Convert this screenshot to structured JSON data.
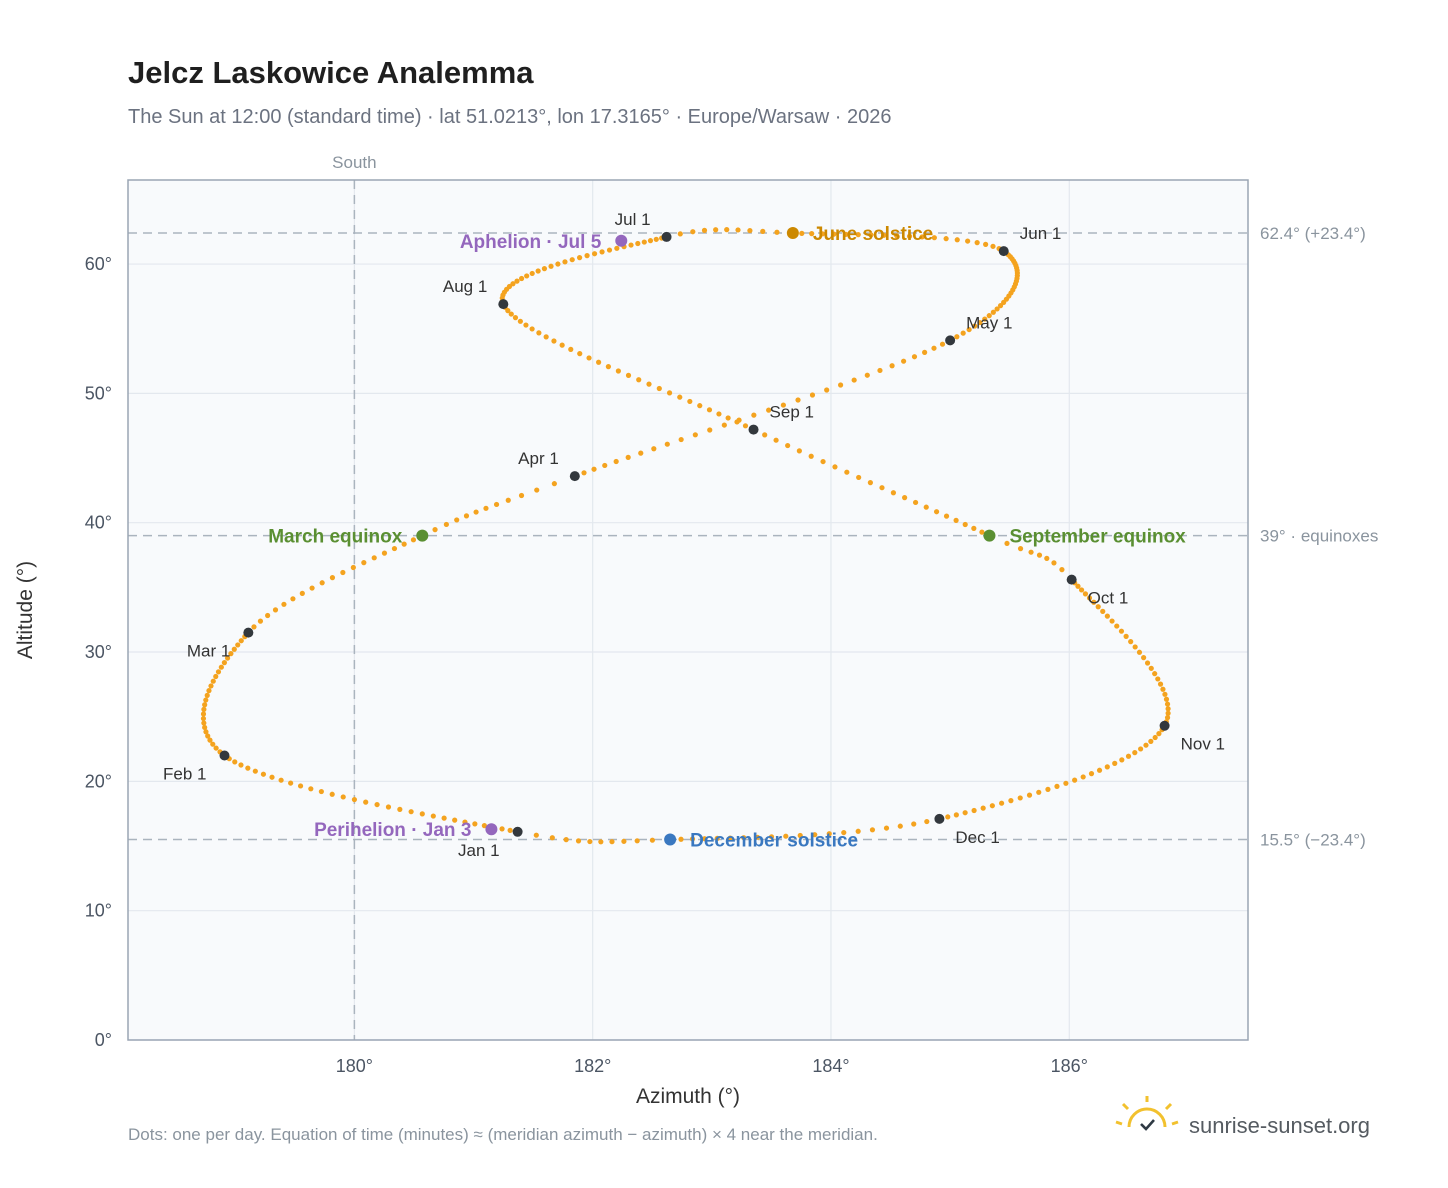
{
  "title": "Jelcz Laskowice Analemma",
  "subtitle": "The Sun at 12:00 (standard time) · lat 51.0213°, lon 17.3165° · Europe/Warsaw · 2026",
  "footnote": "Dots: one per day. Equation of time (minutes) ≈ (meridian azimuth − azimuth) × 4 near the meridian.",
  "brand": "sunrise-sunset.org",
  "colors": {
    "analemma": "#f4a31f",
    "month_marker": "#33383d",
    "equinox": "#5a8f32",
    "june_solstice": "#cc8800",
    "december_solstice": "#3a78c0",
    "apsis": "#9467bd",
    "reference_line": "#aab4be",
    "plot_background": "#f8fafc",
    "grid": "#e3e8ee",
    "frame": "#9aa5b4",
    "brand_sun": "#f2c12e"
  },
  "chart_data": {
    "type": "scatter",
    "title": "Jelcz Laskowice Analemma",
    "xlabel": "Azimuth (°)",
    "ylabel": "Altitude (°)",
    "xlim": [
      178.1,
      187.5
    ],
    "ylim": [
      0,
      66.5
    ],
    "x_ticks": [
      180,
      182,
      184,
      186
    ],
    "x_tick_labels": [
      "180°",
      "182°",
      "184°",
      "186°"
    ],
    "y_ticks": [
      0,
      10,
      20,
      30,
      40,
      50,
      60
    ],
    "y_tick_labels": [
      "0°",
      "10°",
      "20°",
      "30°",
      "40°",
      "50°",
      "60°"
    ],
    "grid": true,
    "legend": "none",
    "meridian": {
      "azimuth": 180,
      "label": "South"
    },
    "reference_lines": [
      {
        "altitude": 62.4,
        "label": "62.4° (+23.4°)"
      },
      {
        "altitude": 39.0,
        "label": "39° · equinoxes"
      },
      {
        "altitude": 15.5,
        "label": "15.5° (−23.4°)"
      }
    ],
    "series": [
      {
        "marker": "dot",
        "sampling": "one point per day",
        "anchors": [
          {
            "day": 1,
            "azimuth": 181.37,
            "altitude": 16.1
          },
          {
            "day": 32,
            "azimuth": 178.91,
            "altitude": 22.0
          },
          {
            "day": 60,
            "azimuth": 179.11,
            "altitude": 31.5
          },
          {
            "day": 79,
            "azimuth": 180.57,
            "altitude": 39.0
          },
          {
            "day": 91,
            "azimuth": 181.85,
            "altitude": 43.6
          },
          {
            "day": 121,
            "azimuth": 185.0,
            "altitude": 54.1
          },
          {
            "day": 152,
            "azimuth": 185.45,
            "altitude": 61.0
          },
          {
            "day": 172,
            "azimuth": 183.68,
            "altitude": 62.4
          },
          {
            "day": 182,
            "azimuth": 182.62,
            "altitude": 62.1
          },
          {
            "day": 213,
            "azimuth": 181.25,
            "altitude": 56.9
          },
          {
            "day": 244,
            "azimuth": 183.35,
            "altitude": 47.2
          },
          {
            "day": 266,
            "azimuth": 185.33,
            "altitude": 39.0
          },
          {
            "day": 274,
            "azimuth": 186.02,
            "altitude": 35.6
          },
          {
            "day": 305,
            "azimuth": 186.8,
            "altitude": 24.3
          },
          {
            "day": 335,
            "azimuth": 184.91,
            "altitude": 17.1
          },
          {
            "day": 355,
            "azimuth": 182.65,
            "altitude": 15.5
          },
          {
            "day": 366,
            "azimuth": 181.37,
            "altitude": 16.1
          }
        ]
      }
    ],
    "month_markers": [
      {
        "label": "Jan 1",
        "azimuth": 181.37,
        "altitude": 16.1,
        "label_pos": "below-left"
      },
      {
        "label": "Feb 1",
        "azimuth": 178.91,
        "altitude": 22.0,
        "label_pos": "below-left"
      },
      {
        "label": "Mar 1",
        "azimuth": 179.11,
        "altitude": 31.5,
        "label_pos": "below-left"
      },
      {
        "label": "Apr 1",
        "azimuth": 181.85,
        "altitude": 43.6,
        "label_pos": "above-left"
      },
      {
        "label": "May 1",
        "azimuth": 185.0,
        "altitude": 54.1,
        "label_pos": "above-right"
      },
      {
        "label": "Jun 1",
        "azimuth": 185.45,
        "altitude": 61.0,
        "label_pos": "above-right"
      },
      {
        "label": "Jul 1",
        "azimuth": 182.62,
        "altitude": 62.1,
        "label_pos": "above-left"
      },
      {
        "label": "Aug 1",
        "azimuth": 181.25,
        "altitude": 56.9,
        "label_pos": "above-left"
      },
      {
        "label": "Sep 1",
        "azimuth": 183.35,
        "altitude": 47.2,
        "label_pos": "above-right"
      },
      {
        "label": "Oct 1",
        "azimuth": 186.02,
        "altitude": 35.6,
        "label_pos": "below-right"
      },
      {
        "label": "Nov 1",
        "azimuth": 186.8,
        "altitude": 24.3,
        "label_pos": "below-right"
      },
      {
        "label": "Dec 1",
        "azimuth": 184.91,
        "altitude": 17.1,
        "label_pos": "below-right"
      }
    ],
    "events": [
      {
        "label": "March equinox",
        "azimuth": 180.57,
        "altitude": 39.0,
        "color_key": "equinox",
        "side": "left"
      },
      {
        "label": "September equinox",
        "azimuth": 185.33,
        "altitude": 39.0,
        "color_key": "equinox",
        "side": "right"
      },
      {
        "label": "June solstice",
        "azimuth": 183.68,
        "altitude": 62.4,
        "color_key": "june_solstice",
        "side": "right"
      },
      {
        "label": "December solstice",
        "azimuth": 182.65,
        "altitude": 15.5,
        "color_key": "december_solstice",
        "side": "right"
      },
      {
        "label": "Aphelion · Jul 5",
        "azimuth": 182.24,
        "altitude": 61.8,
        "color_key": "apsis",
        "side": "left"
      },
      {
        "label": "Perihelion · Jan 3",
        "azimuth": 181.15,
        "altitude": 16.3,
        "color_key": "apsis",
        "side": "left"
      }
    ]
  }
}
